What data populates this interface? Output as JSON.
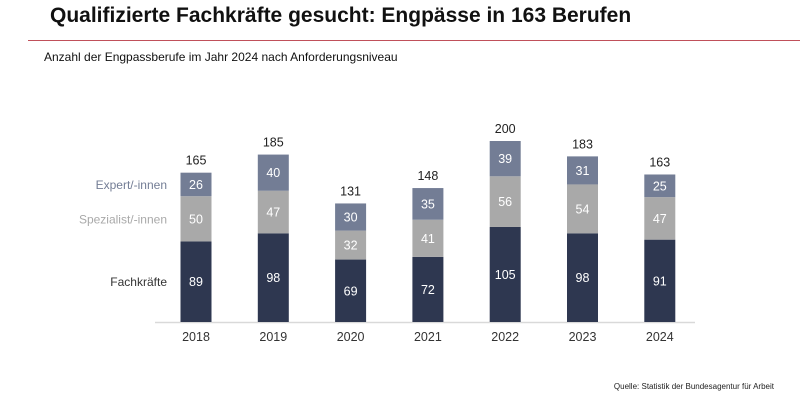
{
  "title": "Qualifizierte Fachkräfte gesucht: Engpässe in 163 Berufen",
  "subtitle": "Anzahl der Engpassberufe im Jahr 2024 nach Anforderungsniveau",
  "source": "Quelle: Statistik der Bundesagentur für Arbeit",
  "chart_data": {
    "type": "bar",
    "stacked": true,
    "categories": [
      "2018",
      "2019",
      "2020",
      "2021",
      "2022",
      "2023",
      "2024"
    ],
    "series": [
      {
        "name": "Fachkräfte",
        "color": "#2e3750",
        "label_color": "#333333",
        "values": [
          89,
          98,
          69,
          72,
          105,
          98,
          91
        ]
      },
      {
        "name": "Spezialist/-innen",
        "color": "#a9a9a9",
        "label_color": "#a9a9a9",
        "values": [
          50,
          47,
          32,
          41,
          56,
          54,
          47
        ]
      },
      {
        "name": "Expert/-innen",
        "color": "#737d95",
        "label_color": "#737d95",
        "values": [
          26,
          40,
          30,
          35,
          39,
          31,
          25
        ]
      }
    ],
    "totals": [
      165,
      185,
      131,
      148,
      200,
      183,
      163
    ],
    "ylim": [
      0,
      200
    ],
    "grid": false,
    "legend": "left, inline labels"
  }
}
